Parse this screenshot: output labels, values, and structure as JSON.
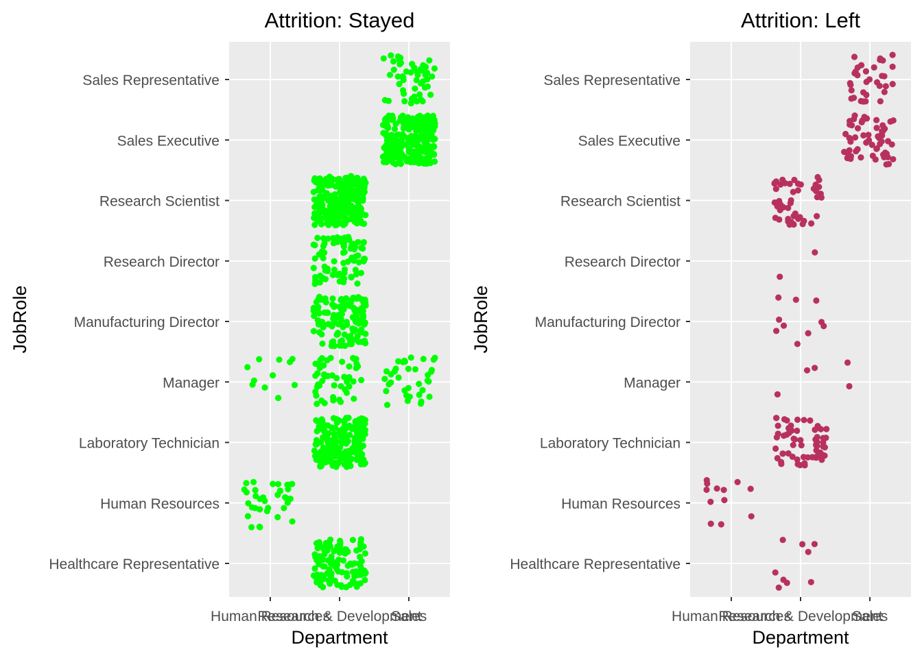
{
  "chart_data": [
    {
      "type": "scatter",
      "title": "Attrition: Stayed",
      "xlabel": "Department",
      "ylabel": "JobRole",
      "x_categories": [
        "Human Resources",
        "Research & Development",
        "Sales"
      ],
      "y_categories": [
        "Healthcare Representative",
        "Human Resources",
        "Laboratory Technician",
        "Manager",
        "Manufacturing Director",
        "Research Director",
        "Research Scientist",
        "Sales Executive",
        "Sales Representative"
      ],
      "grid": true,
      "color": "#00ff00",
      "clusters": [
        {
          "department": "Research & Development",
          "job_role": "Healthcare Representative",
          "count": 110
        },
        {
          "department": "Human Resources",
          "job_role": "Human Resources",
          "count": 35
        },
        {
          "department": "Research & Development",
          "job_role": "Laboratory Technician",
          "count": 200
        },
        {
          "department": "Human Resources",
          "job_role": "Manager",
          "count": 11
        },
        {
          "department": "Research & Development",
          "job_role": "Manager",
          "count": 50
        },
        {
          "department": "Sales",
          "job_role": "Manager",
          "count": 36
        },
        {
          "department": "Research & Development",
          "job_role": "Manufacturing Director",
          "count": 135
        },
        {
          "department": "Research & Development",
          "job_role": "Research Director",
          "count": 78
        },
        {
          "department": "Research & Development",
          "job_role": "Research Scientist",
          "count": 245
        },
        {
          "department": "Sales",
          "job_role": "Sales Executive",
          "count": 269
        },
        {
          "department": "Sales",
          "job_role": "Sales Representative",
          "count": 50
        }
      ]
    },
    {
      "type": "scatter",
      "title": "Attrition: Left",
      "xlabel": "Department",
      "ylabel": "JobRole",
      "x_categories": [
        "Human Resources",
        "Research & Development",
        "Sales"
      ],
      "y_categories": [
        "Healthcare Representative",
        "Human Resources",
        "Laboratory Technician",
        "Manager",
        "Manufacturing Director",
        "Research Director",
        "Research Scientist",
        "Sales Executive",
        "Sales Representative"
      ],
      "grid": true,
      "color": "#b8315e",
      "clusters": [
        {
          "department": "Research & Development",
          "job_role": "Healthcare Representative",
          "count": 9
        },
        {
          "department": "Human Resources",
          "job_role": "Human Resources",
          "count": 12
        },
        {
          "department": "Research & Development",
          "job_role": "Laboratory Technician",
          "count": 62
        },
        {
          "department": "Research & Development",
          "job_role": "Manager",
          "count": 3
        },
        {
          "department": "Sales",
          "job_role": "Manager",
          "count": 2
        },
        {
          "department": "Research & Development",
          "job_role": "Manufacturing Director",
          "count": 10
        },
        {
          "department": "Research & Development",
          "job_role": "Research Director",
          "count": 2
        },
        {
          "department": "Research & Development",
          "job_role": "Research Scientist",
          "count": 47
        },
        {
          "department": "Sales",
          "job_role": "Sales Executive",
          "count": 57
        },
        {
          "department": "Sales",
          "job_role": "Sales Representative",
          "count": 33
        }
      ]
    }
  ]
}
